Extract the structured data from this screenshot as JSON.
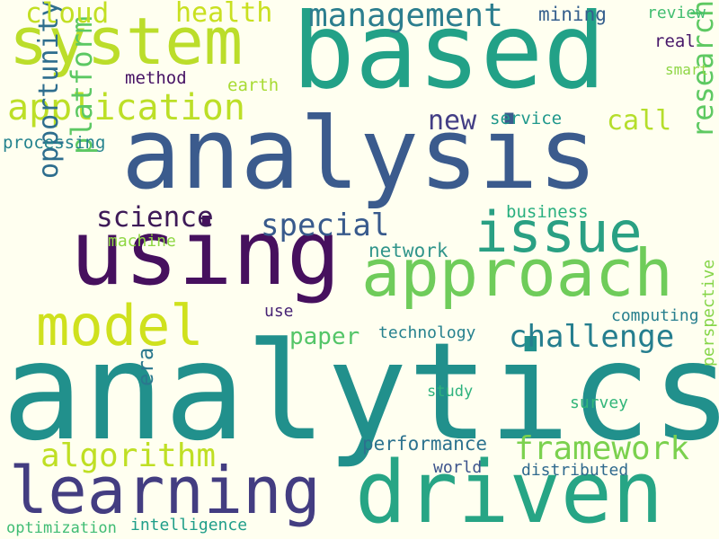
{
  "background": "#fffff0",
  "words": [
    {
      "key": "analytics",
      "text": "analytics",
      "color": "#21908c"
    },
    {
      "key": "analysis",
      "text": "analysis",
      "color": "#3b5b8d"
    },
    {
      "key": "based",
      "text": "based",
      "color": "#22a187"
    },
    {
      "key": "using",
      "text": "using",
      "color": "#46105e"
    },
    {
      "key": "driven",
      "text": "driven",
      "color": "#27a585"
    },
    {
      "key": "learning",
      "text": "learning",
      "color": "#433d81"
    },
    {
      "key": "approach",
      "text": "approach",
      "color": "#6fcc5a"
    },
    {
      "key": "system",
      "text": "system",
      "color": "#bbdd2a"
    },
    {
      "key": "model",
      "text": "model",
      "color": "#cfe11d"
    },
    {
      "key": "issue",
      "text": "issue",
      "color": "#2aa083"
    },
    {
      "key": "application",
      "text": "application",
      "color": "#bcdf27"
    },
    {
      "key": "management",
      "text": "management",
      "color": "#2c7e8e"
    },
    {
      "key": "framework",
      "text": "framework",
      "color": "#7bd14e"
    },
    {
      "key": "challenge",
      "text": "challenge",
      "color": "#257e8e"
    },
    {
      "key": "algorithm",
      "text": "algorithm",
      "color": "#bfdf24"
    },
    {
      "key": "special",
      "text": "special",
      "color": "#385a8c"
    },
    {
      "key": "science",
      "text": "science",
      "color": "#3e1a58"
    },
    {
      "key": "research",
      "text": "research",
      "color": "#5ec962"
    },
    {
      "key": "opportunity",
      "text": "opportunity",
      "color": "#2e6e8e"
    },
    {
      "key": "platform",
      "text": "platform",
      "color": "#5cc863"
    },
    {
      "key": "health",
      "text": "health",
      "color": "#c9e020"
    },
    {
      "key": "cloud",
      "text": "cloud",
      "color": "#c2df23"
    },
    {
      "key": "new",
      "text": "new",
      "color": "#433e85"
    },
    {
      "key": "call",
      "text": "call",
      "color": "#b5de2b"
    },
    {
      "key": "paper",
      "text": "paper",
      "color": "#54c568"
    },
    {
      "key": "era",
      "text": "era",
      "color": "#2a788e"
    },
    {
      "key": "performance",
      "text": "performance",
      "color": "#2c728e"
    },
    {
      "key": "network",
      "text": "network",
      "color": "#31958b"
    },
    {
      "key": "mining",
      "text": "mining",
      "color": "#355f8d"
    },
    {
      "key": "review",
      "text": "review",
      "color": "#42be71"
    },
    {
      "key": "real",
      "text": "real",
      "color": "#48186a"
    },
    {
      "key": "smart",
      "text": "smart",
      "color": "#8ed645"
    },
    {
      "key": "method",
      "text": "method",
      "color": "#471365"
    },
    {
      "key": "earth",
      "text": "earth",
      "color": "#a8db34"
    },
    {
      "key": "service",
      "text": "service",
      "color": "#1f988b"
    },
    {
      "key": "processing",
      "text": "processing",
      "color": "#25838e"
    },
    {
      "key": "business",
      "text": "business",
      "color": "#29af7f"
    },
    {
      "key": "machine",
      "text": "machine",
      "color": "#8fd744"
    },
    {
      "key": "computing",
      "text": "computing",
      "color": "#277f8e"
    },
    {
      "key": "use",
      "text": "use",
      "color": "#482475"
    },
    {
      "key": "technology",
      "text": "technology",
      "color": "#26818e"
    },
    {
      "key": "study",
      "text": "study",
      "color": "#2db27d"
    },
    {
      "key": "survey",
      "text": "survey",
      "color": "#32b67a"
    },
    {
      "key": "perspective",
      "text": "perspective",
      "color": "#86d549"
    },
    {
      "key": "world",
      "text": "world",
      "color": "#3b528b"
    },
    {
      "key": "distributed",
      "text": "distributed",
      "color": "#306a8e"
    },
    {
      "key": "optimization",
      "text": "optimization",
      "color": "#3fbc73"
    },
    {
      "key": "intelligence",
      "text": "intelligence",
      "color": "#1f9e89"
    }
  ]
}
